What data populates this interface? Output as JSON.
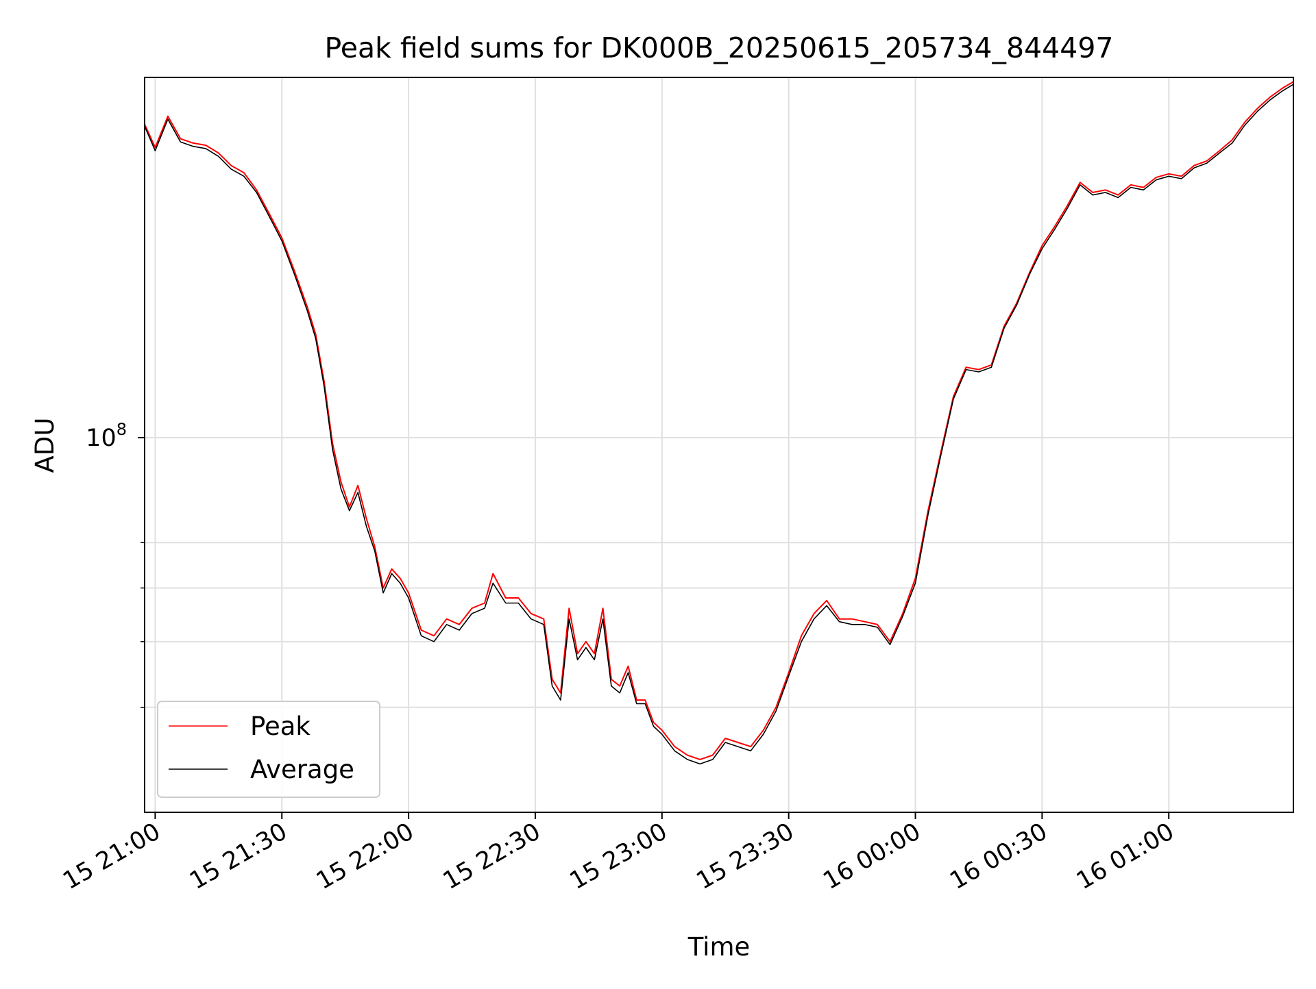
{
  "chart_data": {
    "type": "line",
    "title": "Peak field sums for DK000B_20250615_205734_844497",
    "xlabel": "Time",
    "ylabel": "ADU",
    "y_scale": "log",
    "ylim": [
      28000000,
      340000000
    ],
    "y_major_ticks": [
      {
        "value": 100000000,
        "base": "10",
        "exp": "8"
      }
    ],
    "y_minor_ticks": [
      40000000,
      50000000,
      60000000,
      70000000
    ],
    "xlim": [
      "15 20:57:30",
      "16 01:29:30"
    ],
    "x_ticks": [
      "15 21:00",
      "15 21:30",
      "15 22:00",
      "15 22:30",
      "15 23:00",
      "15 23:30",
      "16 00:00",
      "16 00:30",
      "16 01:00"
    ],
    "grid": true,
    "legend_position": "lower-left",
    "colors": {
      "peak": "#ff0000",
      "average": "#000000"
    },
    "series": [
      {
        "name": "Peak",
        "color": "#ff0000",
        "x": [
          "15 20:57:30",
          "15 21:00",
          "15 21:03",
          "15 21:06",
          "15 21:09",
          "15 21:12",
          "15 21:15",
          "15 21:18",
          "15 21:21",
          "15 21:24",
          "15 21:27",
          "15 21:30",
          "15 21:33",
          "15 21:36",
          "15 21:38",
          "15 21:40",
          "15 21:42",
          "15 21:44",
          "15 21:46",
          "15 21:48",
          "15 21:50",
          "15 21:52",
          "15 21:54",
          "15 21:56",
          "15 21:58",
          "15 22:00",
          "15 22:03",
          "15 22:06",
          "15 22:09",
          "15 22:12",
          "15 22:15",
          "15 22:18",
          "15 22:20",
          "15 22:23",
          "15 22:26",
          "15 22:29",
          "15 22:32",
          "15 22:34",
          "15 22:36",
          "15 22:38",
          "15 22:40",
          "15 22:42",
          "15 22:44",
          "15 22:46",
          "15 22:48",
          "15 22:50",
          "15 22:52",
          "15 22:54",
          "15 22:56",
          "15 22:58",
          "15 23:00",
          "15 23:03",
          "15 23:06",
          "15 23:09",
          "15 23:12",
          "15 23:15",
          "15 23:18",
          "15 23:21",
          "15 23:24",
          "15 23:27",
          "15 23:30",
          "15 23:33",
          "15 23:36",
          "15 23:39",
          "15 23:42",
          "15 23:45",
          "15 23:48",
          "15 23:51",
          "15 23:54",
          "15 23:57",
          "16 00:00",
          "16 00:03",
          "16 00:06",
          "16 00:09",
          "16 00:12",
          "16 00:15",
          "16 00:18",
          "16 00:21",
          "16 00:24",
          "16 00:27",
          "16 00:30",
          "16 00:33",
          "16 00:36",
          "16 00:39",
          "16 00:42",
          "16 00:45",
          "16 00:48",
          "16 00:51",
          "16 00:54",
          "16 00:57",
          "16 01:00",
          "16 01:03",
          "16 01:06",
          "16 01:09",
          "16 01:12",
          "16 01:15",
          "16 01:18",
          "16 01:21",
          "16 01:24",
          "16 01:27",
          "16 01:29:30"
        ],
        "y": [
          290000000,
          268000000,
          298000000,
          276000000,
          272000000,
          270000000,
          263000000,
          252000000,
          246000000,
          232000000,
          214000000,
          197000000,
          176000000,
          156000000,
          142000000,
          121000000,
          98000000,
          86000000,
          79000000,
          85000000,
          76000000,
          69000000,
          60000000,
          64000000,
          62000000,
          59000000,
          52000000,
          51000000,
          54000000,
          53000000,
          56000000,
          57000000,
          63000000,
          58000000,
          58000000,
          55000000,
          54000000,
          44000000,
          42000000,
          56000000,
          48000000,
          50000000,
          48000000,
          56000000,
          44000000,
          43000000,
          46000000,
          41000000,
          41000000,
          38000000,
          37000000,
          35000000,
          34000000,
          33500000,
          34000000,
          36000000,
          35500000,
          35000000,
          37000000,
          40000000,
          45000000,
          51000000,
          55000000,
          57500000,
          54000000,
          54000000,
          53500000,
          53000000,
          50000000,
          55000000,
          62000000,
          78000000,
          95000000,
          115000000,
          127000000,
          126000000,
          128000000,
          146000000,
          158000000,
          175000000,
          192000000,
          205000000,
          220000000,
          238000000,
          230000000,
          232000000,
          228000000,
          236000000,
          234000000,
          242000000,
          245000000,
          243000000,
          252000000,
          256000000,
          265000000,
          275000000,
          292000000,
          306000000,
          318000000,
          328000000,
          335000000
        ]
      },
      {
        "name": "Average",
        "color": "#000000",
        "x": [
          "15 20:57:30",
          "15 21:00",
          "15 21:03",
          "15 21:06",
          "15 21:09",
          "15 21:12",
          "15 21:15",
          "15 21:18",
          "15 21:21",
          "15 21:24",
          "15 21:27",
          "15 21:30",
          "15 21:33",
          "15 21:36",
          "15 21:38",
          "15 21:40",
          "15 21:42",
          "15 21:44",
          "15 21:46",
          "15 21:48",
          "15 21:50",
          "15 21:52",
          "15 21:54",
          "15 21:56",
          "15 21:58",
          "15 22:00",
          "15 22:03",
          "15 22:06",
          "15 22:09",
          "15 22:12",
          "15 22:15",
          "15 22:18",
          "15 22:20",
          "15 22:23",
          "15 22:26",
          "15 22:29",
          "15 22:32",
          "15 22:34",
          "15 22:36",
          "15 22:38",
          "15 22:40",
          "15 22:42",
          "15 22:44",
          "15 22:46",
          "15 22:48",
          "15 22:50",
          "15 22:52",
          "15 22:54",
          "15 22:56",
          "15 22:58",
          "15 23:00",
          "15 23:03",
          "15 23:06",
          "15 23:09",
          "15 23:12",
          "15 23:15",
          "15 23:18",
          "15 23:21",
          "15 23:24",
          "15 23:27",
          "15 23:30",
          "15 23:33",
          "15 23:36",
          "15 23:39",
          "15 23:42",
          "15 23:45",
          "15 23:48",
          "15 23:51",
          "15 23:54",
          "15 23:57",
          "16 00:00",
          "16 00:03",
          "16 00:06",
          "16 00:09",
          "16 00:12",
          "16 00:15",
          "16 00:18",
          "16 00:21",
          "16 00:24",
          "16 00:27",
          "16 00:30",
          "16 00:33",
          "16 00:36",
          "16 00:39",
          "16 00:42",
          "16 00:45",
          "16 00:48",
          "16 00:51",
          "16 00:54",
          "16 00:57",
          "16 01:00",
          "16 01:03",
          "16 01:06",
          "16 01:09",
          "16 01:12",
          "16 01:15",
          "16 01:18",
          "16 01:21",
          "16 01:24",
          "16 01:27",
          "16 01:29:30"
        ],
        "y": [
          288000000,
          265000000,
          295000000,
          273000000,
          269000000,
          267000000,
          260000000,
          249000000,
          243000000,
          230000000,
          212000000,
          195000000,
          174000000,
          154000000,
          140000000,
          119000000,
          96000000,
          84000000,
          78000000,
          83000000,
          74000000,
          68000000,
          59000000,
          63000000,
          61000000,
          58000000,
          51000000,
          50000000,
          53000000,
          52000000,
          55000000,
          56000000,
          61000000,
          57000000,
          57000000,
          54000000,
          53000000,
          43000000,
          41000000,
          54000000,
          47000000,
          49000000,
          47000000,
          54000000,
          43000000,
          42000000,
          45000000,
          40500000,
          40500000,
          37500000,
          36500000,
          34500000,
          33500000,
          33000000,
          33500000,
          35500000,
          35000000,
          34500000,
          36500000,
          39500000,
          44500000,
          50000000,
          54000000,
          56500000,
          53500000,
          53000000,
          53000000,
          52500000,
          49500000,
          54500000,
          61000000,
          77000000,
          94000000,
          114000000,
          126000000,
          125000000,
          127000000,
          145000000,
          157000000,
          174000000,
          190000000,
          203000000,
          218000000,
          236000000,
          228000000,
          230000000,
          226000000,
          234000000,
          232000000,
          240000000,
          243000000,
          241000000,
          250000000,
          254000000,
          263000000,
          272000000,
          289000000,
          303000000,
          315000000,
          325000000,
          332000000
        ]
      }
    ]
  }
}
